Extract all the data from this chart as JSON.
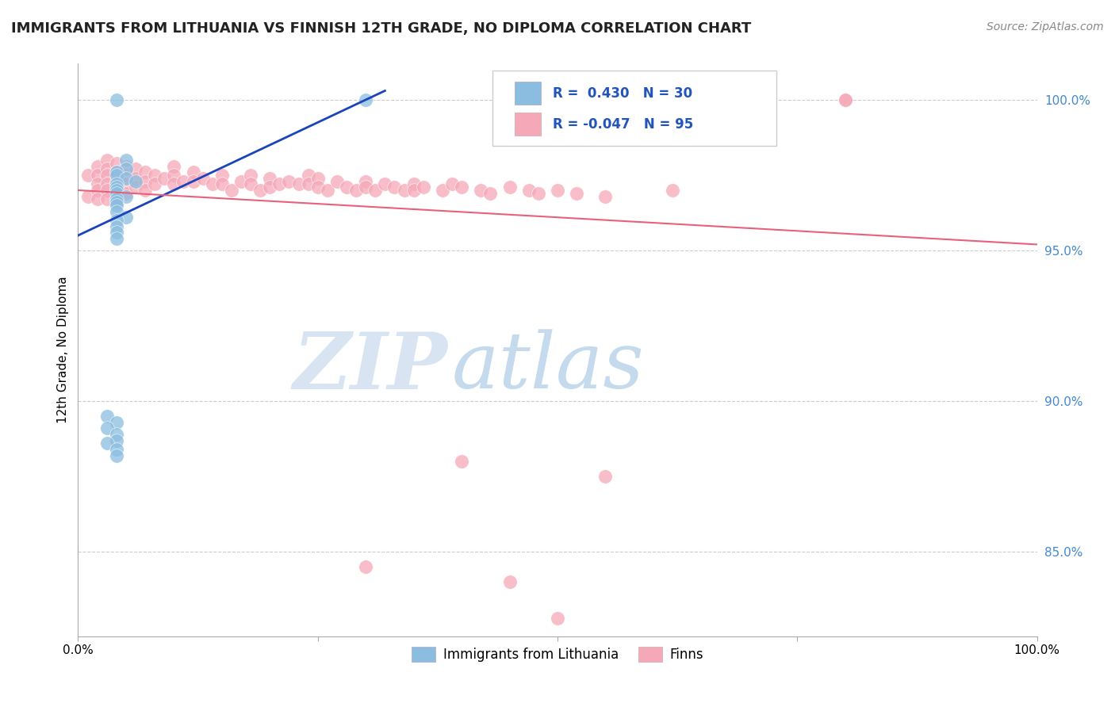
{
  "title": "IMMIGRANTS FROM LITHUANIA VS FINNISH 12TH GRADE, NO DIPLOMA CORRELATION CHART",
  "source": "Source: ZipAtlas.com",
  "ylabel": "12th Grade, No Diploma",
  "xlim": [
    0.0,
    1.0
  ],
  "ylim": [
    0.822,
    1.012
  ],
  "right_yticks": [
    0.85,
    0.9,
    0.95,
    1.0
  ],
  "right_yticklabels": [
    "85.0%",
    "90.0%",
    "95.0%",
    "100.0%"
  ],
  "legend_R_blue": "0.430",
  "legend_N_blue": "30",
  "legend_R_pink": "-0.047",
  "legend_N_pink": "95",
  "blue_color": "#8bbde0",
  "pink_color": "#f5a8b8",
  "blue_line_color": "#1a44bb",
  "pink_line_color": "#e8607a",
  "bottom_legend_blue": "Immigrants from Lithuania",
  "bottom_legend_pink": "Finns",
  "grid_color": "#cccccc",
  "background_color": "#ffffff",
  "blue_trend_x": [
    0.0,
    0.32
  ],
  "blue_trend_y": [
    0.955,
    1.003
  ],
  "pink_trend_x": [
    0.0,
    1.0
  ],
  "pink_trend_y": [
    0.97,
    0.952
  ]
}
